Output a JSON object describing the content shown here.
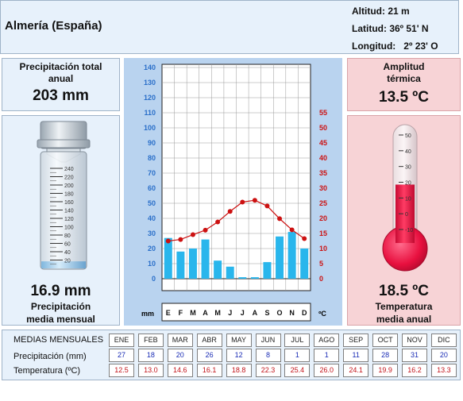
{
  "header": {
    "station": "Almería (España)",
    "altitude": "Altitud: 21 m",
    "latitude": "Latitud: 36º 51' N",
    "longitude": "Longitud:   2º 23' O"
  },
  "precip_total": {
    "label_line1": "Precipitación total",
    "label_line2": "anual",
    "value": "203 mm"
  },
  "precip_mean": {
    "value": "16.9 mm",
    "label_line1": "Precipitación",
    "label_line2": "media mensual",
    "gauge_ticks": [
      "240",
      "220",
      "200",
      "180",
      "160",
      "140",
      "120",
      "100",
      "80",
      "60",
      "40",
      "20"
    ],
    "gauge_level_mm": 16.9
  },
  "amplitude": {
    "label_line1": "Amplitud",
    "label_line2": "térmica",
    "value": "13.5 ºC"
  },
  "temp_mean": {
    "value": "18.5 ºC",
    "label_line1": "Temperatura",
    "label_line2": "media anual",
    "thermo_ticks": [
      "50",
      "40",
      "30",
      "20",
      "10",
      "0",
      "-10"
    ],
    "thermo_level_c": 18.5
  },
  "chart_data": {
    "type": "bar",
    "categories": [
      "E",
      "F",
      "M",
      "A",
      "M",
      "J",
      "J",
      "A",
      "S",
      "O",
      "N",
      "D"
    ],
    "series": [
      {
        "values": [
          27,
          18,
          20,
          26,
          12,
          8,
          1,
          1,
          11,
          28,
          31,
          20
        ],
        "axis": "left",
        "kind": "bar"
      },
      {
        "values": [
          12.5,
          13.0,
          14.6,
          16.1,
          18.8,
          22.3,
          25.4,
          26.0,
          24.1,
          19.9,
          16.2,
          13.3
        ],
        "axis": "right",
        "kind": "line"
      }
    ],
    "left_axis": {
      "unit": "mm",
      "ylim": [
        0,
        140
      ],
      "ticks": [
        "0",
        "10",
        "20",
        "30",
        "40",
        "50",
        "60",
        "70",
        "80",
        "90",
        "100",
        "110",
        "120",
        "130",
        "140"
      ]
    },
    "right_axis": {
      "unit": "ºC",
      "ylim": [
        0,
        70
      ],
      "ticks": [
        "0",
        "5",
        "10",
        "15",
        "20",
        "25",
        "30",
        "35",
        "40",
        "45",
        "50",
        "55"
      ]
    },
    "grid": true,
    "colors": {
      "bars": "#29b6ec",
      "line": "#cc1111",
      "left_ticks": "#2a6fc9",
      "right_ticks": "#cc1111"
    }
  },
  "table": {
    "title": "MEDIAS MENSUALES",
    "precip_label": "Precipitación (mm)",
    "temp_label": "Temperatura (ºC)",
    "months": [
      "ENE",
      "FEB",
      "MAR",
      "ABR",
      "MAY",
      "JUN",
      "JUL",
      "AGO",
      "SEP",
      "OCT",
      "NOV",
      "DIC"
    ],
    "precip": [
      "27",
      "18",
      "20",
      "26",
      "12",
      "8",
      "1",
      "1",
      "11",
      "28",
      "31",
      "20"
    ],
    "temp": [
      "12.5",
      "13.0",
      "14.6",
      "16.1",
      "18.8",
      "22.3",
      "25.4",
      "26.0",
      "24.1",
      "19.9",
      "16.2",
      "13.3"
    ]
  }
}
